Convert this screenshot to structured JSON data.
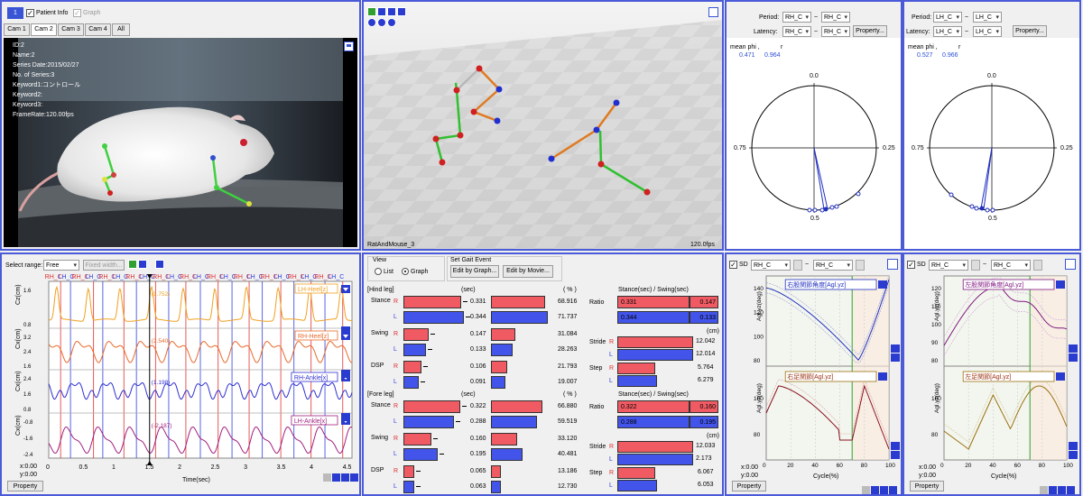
{
  "video": {
    "tab_number": "1",
    "patient_info_label": "Patient Info",
    "graph_label": "Graph",
    "cams": [
      "Cam 1",
      "Cam 2",
      "Cam 3",
      "Cam 4",
      "All"
    ],
    "overlay": [
      "ID:2",
      "Name:2",
      "Series Date:2015/02/27",
      "No. of Series:3",
      "Keyword1:コントロール",
      "Keyword2:",
      "Keyword3:",
      "FrameRate:120.00fps"
    ]
  },
  "view3d": {
    "label": "RatAndMouse_3",
    "fps": "120.0fps"
  },
  "circles": [
    {
      "period_label": "Period:",
      "period_from": "RH_C",
      "period_to": "RH_C",
      "latency_label": "Latency:",
      "latency_from": "RH_C",
      "latency_to": "RH_C",
      "property": "Property...",
      "mean_label": "mean phi ,",
      "r_label": "r",
      "phi": "0.471",
      "r": "0.964",
      "top": "0.0",
      "left": "0.75",
      "right": "0.25",
      "bottom": "0.5"
    },
    {
      "period_label": "Period:",
      "period_from": "LH_C",
      "period_to": "LH_C",
      "latency_label": "Latency:",
      "latency_from": "LH_C",
      "latency_to": "LH_C",
      "property": "Property...",
      "mean_label": "mean phi ,",
      "r_label": "r",
      "phi": "0.527",
      "r": "0.966",
      "top": "0.0",
      "left": "0.75",
      "right": "0.25",
      "bottom": "0.5"
    }
  ],
  "timeseries": {
    "select_range_label": "Select range:",
    "range_value": "Free",
    "fixed_width": "Fixed width...",
    "event_labels": [
      "RH_C",
      "LH_C",
      "RH_C",
      "LH_C",
      "RH_C",
      "LH_C",
      "RH_C",
      "LH_C",
      "RH_C",
      "LH_C",
      "RH_C",
      "LH_C",
      "RH_C",
      "LH_C",
      "RH_C",
      "LH_C",
      "RH_C",
      "LH_C",
      "RH_C",
      "LH_C",
      "RH_C",
      "LH_C"
    ],
    "tracks": [
      {
        "legend": "LH-Heel[z]",
        "ylabel": "Cz(cm)",
        "ticks": [
          "1.6",
          "0.8"
        ],
        "readout": "1.752",
        "color": "#f0a020"
      },
      {
        "legend": "RH-Heel[z]",
        "ylabel": "Cx(cm)",
        "ticks": [
          "3.2",
          "2.4",
          "1.6"
        ],
        "readout": "2.540",
        "color": "#e86a2a"
      },
      {
        "legend": "RH-Ankle[x]",
        "ylabel": "Cx(cm)",
        "ticks": [
          "2.4",
          "1.6",
          "0.8"
        ],
        "readout": "1.198",
        "color": "#3030d0"
      },
      {
        "legend": "LH-Ankle[x]",
        "ylabel": "Cx(cm)",
        "ticks": [
          "-0.8",
          "-1.6",
          "-2.4"
        ],
        "readout": "-2.187",
        "color": "#a02080"
      }
    ],
    "x_ticks": [
      "0",
      "0.5",
      "1",
      "1.5",
      "2",
      "2.5",
      "3",
      "3.5",
      "4",
      "4.5"
    ],
    "xlabel": "Time(sec)",
    "xy": [
      "x:0.00",
      "y:0.00"
    ],
    "property": "Property"
  },
  "gait": {
    "view_label": "View",
    "list_label": "List",
    "graph_label": "Graph",
    "set_event_label": "Set Gait Event",
    "edit_graph": "Edit by Graph...",
    "edit_movie": "Edit by Movie...",
    "hind": {
      "header": "[Hind leg]",
      "unit_sec": "(sec)",
      "unit_pct": "( % )",
      "rows": [
        {
          "name": "Stance",
          "R_sec": "0.331",
          "L_sec": "0.344",
          "R_pct": "68.916",
          "L_pct": "71.737",
          "R_w": 0.92,
          "L_w": 0.96,
          "Rp_w": 0.85,
          "Lp_w": 0.9
        },
        {
          "name": "Swing",
          "R_sec": "0.147",
          "L_sec": "0.133",
          "R_pct": "31.084",
          "L_pct": "28.263",
          "R_w": 0.4,
          "L_w": 0.36,
          "Rp_w": 0.38,
          "Lp_w": 0.34
        },
        {
          "name": "DSP",
          "R_sec": "0.106",
          "L_sec": "0.091",
          "R_pct": "21.793",
          "L_pct": "19.007",
          "R_w": 0.28,
          "L_w": 0.24,
          "Rp_w": 0.26,
          "Lp_w": 0.23
        }
      ],
      "ratio_header": "Stance(sec) / Swing(sec)",
      "ratio_R": "0.331",
      "ratio_R2": "0.147",
      "ratio_L": "0.344",
      "ratio_L2": "0.133",
      "unit_cm": "(cm)",
      "stride_label": "Stride",
      "stride_R": "12.042",
      "stride_L": "12.014",
      "step_label": "Step",
      "step_R": "5.764",
      "step_L": "6.279"
    },
    "fore": {
      "header": "[Fore leg]",
      "unit_sec": "(sec)",
      "unit_pct": "( % )",
      "rows": [
        {
          "name": "Stance",
          "R_sec": "0.322",
          "L_sec": "0.288",
          "R_pct": "66.880",
          "L_pct": "59.519",
          "R_w": 0.9,
          "L_w": 0.8,
          "Rp_w": 0.82,
          "Lp_w": 0.73
        },
        {
          "name": "Swing",
          "R_sec": "0.160",
          "L_sec": "0.195",
          "R_pct": "33.120",
          "L_pct": "40.481",
          "R_w": 0.44,
          "L_w": 0.54,
          "Rp_w": 0.41,
          "Lp_w": 0.5
        },
        {
          "name": "DSP",
          "R_sec": "0.065",
          "L_sec": "0.063",
          "R_pct": "13.186",
          "L_pct": "12.730",
          "R_w": 0.17,
          "L_w": 0.17,
          "Rp_w": 0.16,
          "Lp_w": 0.15
        }
      ],
      "ratio_header": "Stance(sec) / Swing(sec)",
      "ratio_R": "0.322",
      "ratio_R2": "0.160",
      "ratio_L": "0.288",
      "ratio_L2": "0.195",
      "unit_cm": "(cm)",
      "stride_label": "Stride",
      "stride_R": "12.033",
      "stride_L": "2.173",
      "step_label": "Step",
      "step_R": "6.067",
      "step_L": "6.053"
    }
  },
  "angles": [
    {
      "sd_label": "SD",
      "sel1": "RH_C",
      "sel2": "RH_C",
      "top_title": "右股関節角度[Agl.yz]",
      "bottom_title": "右足関節[Agl.yz]",
      "ylabel": "Agl.yz(deg)",
      "top_ticks": [
        "140",
        "120",
        "100",
        "80"
      ],
      "bottom_ticks": [
        "100",
        "80"
      ],
      "x_ticks": [
        "0",
        "20",
        "40",
        "60",
        "80",
        "100"
      ],
      "xlabel": "Cycle(%)",
      "xy": [
        "x:0.00",
        "y:0.00"
      ],
      "property": "Property",
      "color": "#2030c0"
    },
    {
      "sd_label": "SD",
      "sel1": "RH_C",
      "sel2": "RH_C",
      "top_title": "左股関節角度[Agl.yz]",
      "bottom_title": "左足関節[Agl.yz]",
      "ylabel": "Agl.yz(deg)",
      "top_ticks": [
        "120",
        "110",
        "100",
        "90",
        "80"
      ],
      "bottom_ticks": [
        "100",
        "80"
      ],
      "x_ticks": [
        "0",
        "20",
        "40",
        "60",
        "80",
        "100"
      ],
      "xlabel": "Cycle(%)",
      "xy": [
        "x:0.00",
        "y:0.00"
      ],
      "property": "Property",
      "color": "#801880"
    }
  ]
}
